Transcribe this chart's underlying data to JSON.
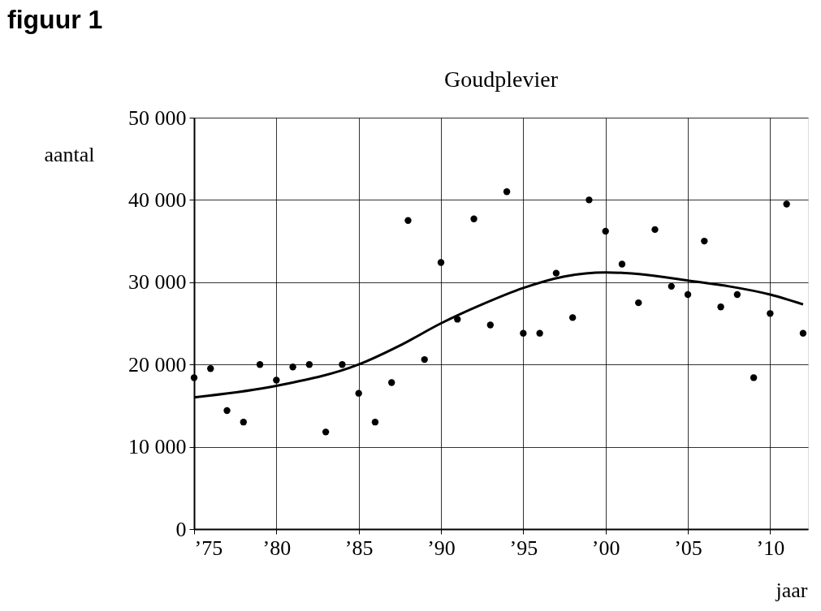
{
  "chart_data": {
    "type": "scatter",
    "title": "Goudplevier",
    "xlabel": "jaar",
    "ylabel": "aantal",
    "annotations": [
      "figuur 1"
    ],
    "xlim": [
      1975,
      2012.3
    ],
    "xticks": [
      {
        "value": 1975,
        "label": "’75"
      },
      {
        "value": 1980,
        "label": "’80"
      },
      {
        "value": 1985,
        "label": "’85"
      },
      {
        "value": 1990,
        "label": "’90"
      },
      {
        "value": 1995,
        "label": "’95"
      },
      {
        "value": 2000,
        "label": "’00"
      },
      {
        "value": 2005,
        "label": "’05"
      },
      {
        "value": 2010,
        "label": "’10"
      }
    ],
    "ylim": [
      0,
      50000
    ],
    "yticks": [
      0,
      {
        "value": 10000,
        "label": "10 000"
      },
      {
        "value": 20000,
        "label": "20 000"
      },
      {
        "value": 30000,
        "label": "30 000"
      },
      {
        "value": 40000,
        "label": "40 000"
      },
      {
        "value": 50000,
        "label": "50 000"
      }
    ],
    "grid": true,
    "marker": "circle",
    "line_style": "solid",
    "series": [
      {
        "color": "#000000",
        "x": [
          1975,
          1976,
          1977,
          1978,
          1979,
          1980,
          1981,
          1982,
          1983,
          1984,
          1985,
          1986,
          1987,
          1988,
          1989,
          1990,
          1991,
          1992,
          1993,
          1994,
          1995,
          1996,
          1997,
          1998,
          1999,
          2000,
          2001,
          2002,
          2003,
          2004,
          2005,
          2006,
          2007,
          2008,
          2009,
          2010,
          2011,
          2012
        ],
        "values": [
          18400,
          19500,
          14400,
          13000,
          20000,
          18100,
          19700,
          20000,
          11800,
          20000,
          16500,
          13000,
          17800,
          37500,
          20600,
          32400,
          25500,
          37700,
          24800,
          41000,
          23800,
          23800,
          31100,
          25700,
          40000,
          36200,
          32200,
          27500,
          36400,
          29500,
          28500,
          35000,
          27000,
          28500,
          18400,
          26200,
          39500,
          23800
        ]
      },
      {
        "type": "line",
        "marker": "none",
        "color": "#000000",
        "x": [
          1975,
          1980,
          1985,
          1987.5,
          1990,
          1992.5,
          1995,
          1997.5,
          2000,
          2002.5,
          2005,
          2007.5,
          2010,
          2012
        ],
        "values": [
          16000,
          17400,
          20000,
          22300,
          25000,
          27300,
          29300,
          30700,
          31200,
          30900,
          30200,
          29500,
          28500,
          27300
        ]
      }
    ]
  }
}
